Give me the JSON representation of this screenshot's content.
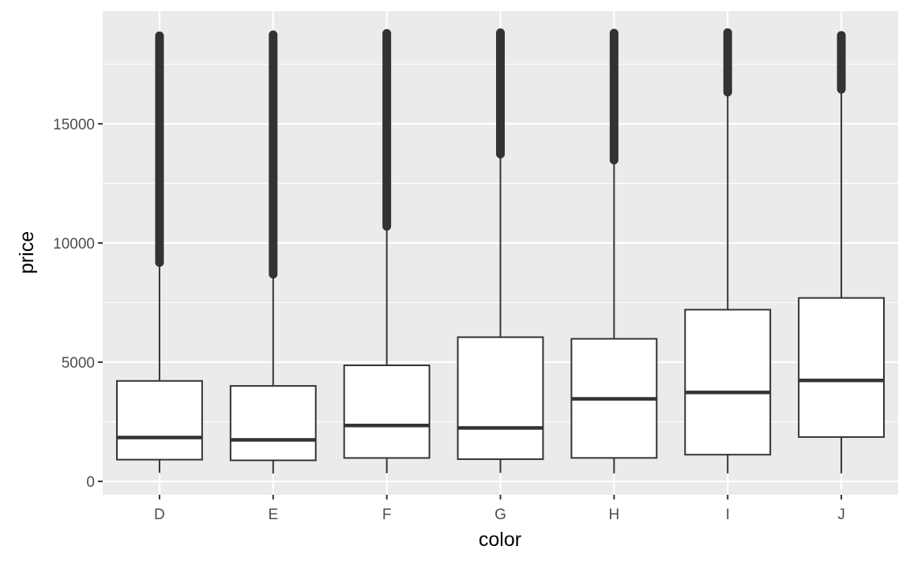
{
  "chart_data": {
    "type": "boxplot",
    "title": "",
    "xlabel": "color",
    "ylabel": "price",
    "categories": [
      "D",
      "E",
      "F",
      "G",
      "H",
      "I",
      "J"
    ],
    "ylim": [
      -560,
      19730
    ],
    "yticks": [
      0,
      5000,
      10000,
      15000
    ],
    "ytick_labels": [
      "0",
      "5000",
      "10000",
      "15000"
    ],
    "grid": true,
    "panel_background": "#EBEBEB",
    "box_fill": "#FFFFFF",
    "line_color": "#333333",
    "boxes": [
      {
        "category": "D",
        "whisker_low": 357,
        "q1": 911,
        "median": 1838,
        "q3": 4214,
        "whisker_high": 9160,
        "outliers_range": [
          9180,
          18693
        ]
      },
      {
        "category": "E",
        "whisker_low": 326,
        "q1": 882,
        "median": 1739,
        "q3": 4003,
        "whisker_high": 8680,
        "outliers_range": [
          8690,
          18731
        ]
      },
      {
        "category": "F",
        "whisker_low": 342,
        "q1": 982,
        "median": 2344,
        "q3": 4868,
        "whisker_high": 10690,
        "outliers_range": [
          10700,
          18791
        ]
      },
      {
        "category": "G",
        "whisker_low": 354,
        "q1": 931,
        "median": 2242,
        "q3": 6048,
        "whisker_high": 13720,
        "outliers_range": [
          13730,
          18818
        ]
      },
      {
        "category": "H",
        "whisker_low": 337,
        "q1": 984,
        "median": 3460,
        "q3": 5980,
        "whisker_high": 13470,
        "outliers_range": [
          13480,
          18803
        ]
      },
      {
        "category": "I",
        "whisker_low": 334,
        "q1": 1120,
        "median": 3730,
        "q3": 7202,
        "whisker_high": 16320,
        "outliers_range": [
          16330,
          18823
        ]
      },
      {
        "category": "J",
        "whisker_low": 335,
        "q1": 1860,
        "median": 4234,
        "q3": 7695,
        "whisker_high": 16440,
        "outliers_range": [
          16450,
          18710
        ]
      }
    ]
  }
}
